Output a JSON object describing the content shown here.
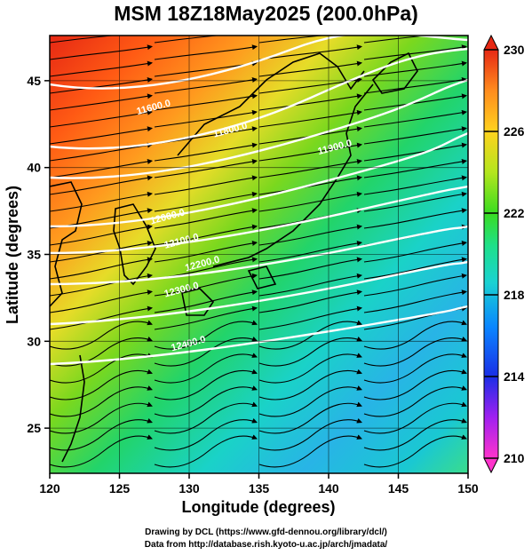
{
  "title": "MSM 18Z18May2025 (200.0hPa)",
  "map": {
    "xlabel": "Longitude (degrees)",
    "ylabel": "Latitude  (degrees)",
    "lon_range": [
      120,
      150
    ],
    "lat_range": [
      22.4,
      47.6
    ],
    "lon_ticks": [
      {
        "v": 120,
        "label": "120"
      },
      {
        "v": 125,
        "label": "125"
      },
      {
        "v": 130,
        "label": "130"
      },
      {
        "v": 135,
        "label": "135"
      },
      {
        "v": 140,
        "label": "140"
      },
      {
        "v": 145,
        "label": "145"
      },
      {
        "v": 150,
        "label": "150"
      }
    ],
    "lat_ticks": [
      {
        "v": 25,
        "label": "25"
      },
      {
        "v": 30,
        "label": "30"
      },
      {
        "v": 35,
        "label": "35"
      },
      {
        "v": 40,
        "label": "40"
      },
      {
        "v": 45,
        "label": "45"
      }
    ],
    "contour_labels": [
      {
        "text": "11600.0",
        "lon": 127.5,
        "lat": 43.3
      },
      {
        "text": "11800.0",
        "lon": 133.0,
        "lat": 42.0
      },
      {
        "text": "11900.0",
        "lon": 140.5,
        "lat": 41.0
      },
      {
        "text": "12000.0",
        "lon": 128.5,
        "lat": 37.0
      },
      {
        "text": "12100.0",
        "lon": 129.5,
        "lat": 35.6
      },
      {
        "text": "12200.0",
        "lon": 131.0,
        "lat": 34.3
      },
      {
        "text": "12300.0",
        "lon": 129.5,
        "lat": 32.8
      },
      {
        "text": "12400.0",
        "lon": 130.0,
        "lat": 29.7
      }
    ],
    "field": "temperature (K)",
    "overlay": "streamlines",
    "contour_color": "#ffffff"
  },
  "colorbar": {
    "range": [
      210,
      230
    ],
    "tick_labels": [
      "230",
      "226",
      "222",
      "218",
      "214",
      "210"
    ],
    "colors": [
      "#ff33cc",
      "#a020f0",
      "#1a2ee6",
      "#0a85ff",
      "#1ad2d2",
      "#1ee08a",
      "#3adc20",
      "#b4e61e",
      "#ffd21e",
      "#ff8c1e",
      "#e62814"
    ]
  },
  "footer": {
    "line1": "Drawing by DCL (https://www.gfd-dennou.org/library/dcl/)",
    "line2": "Data from http://database.rish.kyoto-u.ac.jp/arch/jmadata/"
  }
}
